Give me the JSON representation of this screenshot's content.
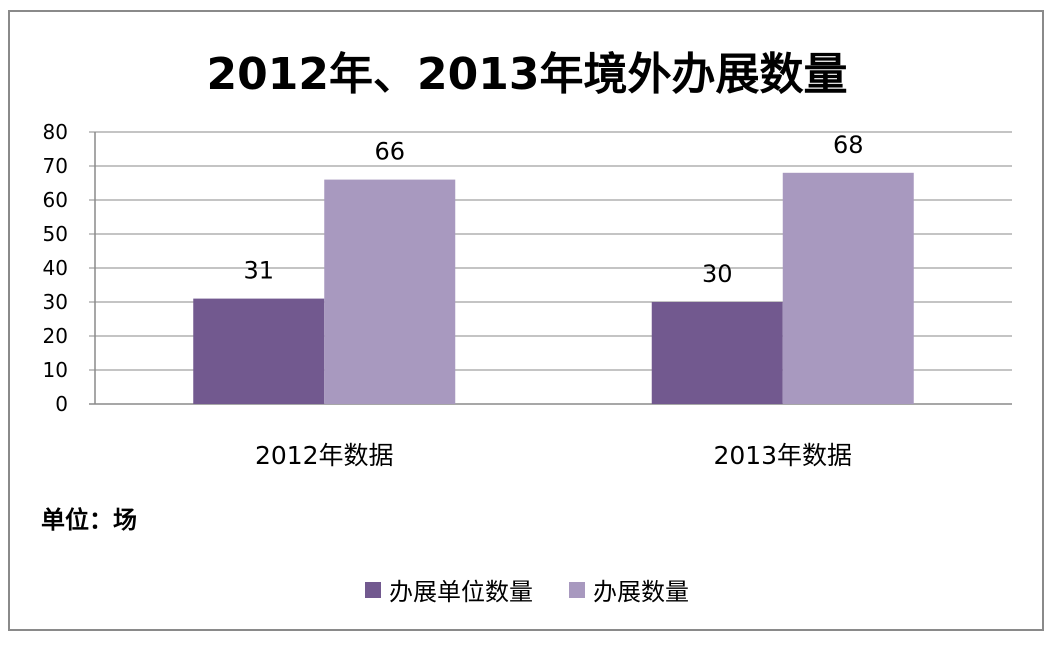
{
  "chart_data": {
    "type": "bar",
    "title": "2012年、2013年境外办展数量",
    "categories": [
      "2012年数据",
      "2013年数据"
    ],
    "series": [
      {
        "name": "办展单位数量",
        "values": [
          31,
          30
        ],
        "color": "#72598f"
      },
      {
        "name": "办展数量",
        "values": [
          66,
          68
        ],
        "color": "#a899bf"
      }
    ],
    "ylim": [
      0,
      80
    ],
    "yticks": [
      0,
      10,
      20,
      30,
      40,
      50,
      60,
      70,
      80
    ],
    "grid": true,
    "legend_position": "bottom"
  },
  "unit_note": "单位：场"
}
